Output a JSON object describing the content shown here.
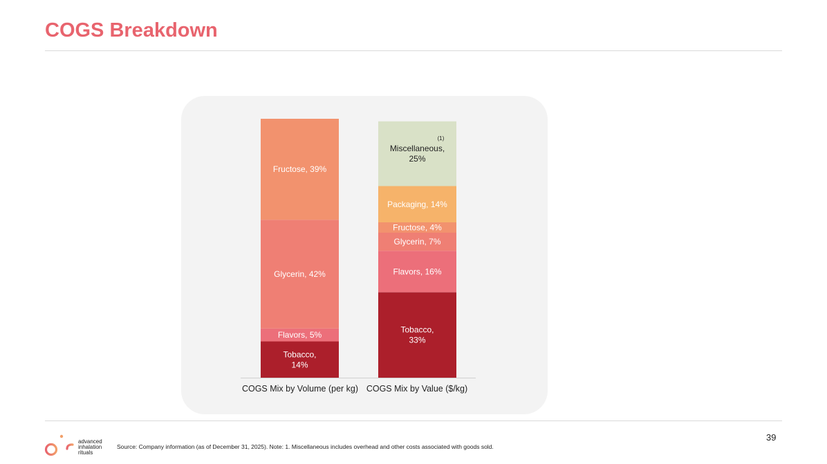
{
  "page": {
    "title": "COGS Breakdown",
    "page_number": "39",
    "source_note": "Source: Company information (as of December 31, 2025). Note: 1. Miscellaneous includes overhead and other costs associated with goods sold.",
    "logo": {
      "wordmark": "air",
      "tagline": [
        "advanced",
        "inhalation",
        "rituals"
      ]
    }
  },
  "chart_data": {
    "type": "bar",
    "stacked": true,
    "title": "",
    "xlabel": "",
    "ylabel": "",
    "ylim": [
      0,
      100
    ],
    "categories": [
      "COGS Mix by Volume (per kg)",
      "COGS Mix by Value ($/kg)"
    ],
    "series": [
      {
        "name": "Tobacco",
        "color": "#ac1f2b",
        "values": [
          14,
          33
        ],
        "labels": [
          "Tobacco,\n14%",
          "Tobacco,\n33%"
        ]
      },
      {
        "name": "Flavors",
        "color": "#ec6f7a",
        "values": [
          5,
          16
        ],
        "labels": [
          "Flavors, 5%",
          "Flavors, 16%"
        ]
      },
      {
        "name": "Glycerin",
        "color": "#ef7f74",
        "values": [
          42,
          7
        ],
        "labels": [
          "Glycerin, 42%",
          "Glycerin, 7%"
        ]
      },
      {
        "name": "Fructose",
        "color": "#f2926e",
        "values": [
          39,
          4
        ],
        "labels": [
          "Fructose, 39%",
          "Fructose, 4%"
        ]
      },
      {
        "name": "Packaging",
        "color": "#f6b36a",
        "values": [
          0,
          14
        ],
        "labels": [
          "",
          "Packaging, 14%"
        ]
      },
      {
        "name": "Miscellaneous",
        "color": "#d9e1c7",
        "values": [
          0,
          25
        ],
        "labels": [
          "",
          "Miscellaneous,\n25%"
        ],
        "label_color": "#222222",
        "footnote": "(1)"
      }
    ],
    "label_color": "#ffffff",
    "grid": false,
    "legend": "none"
  }
}
